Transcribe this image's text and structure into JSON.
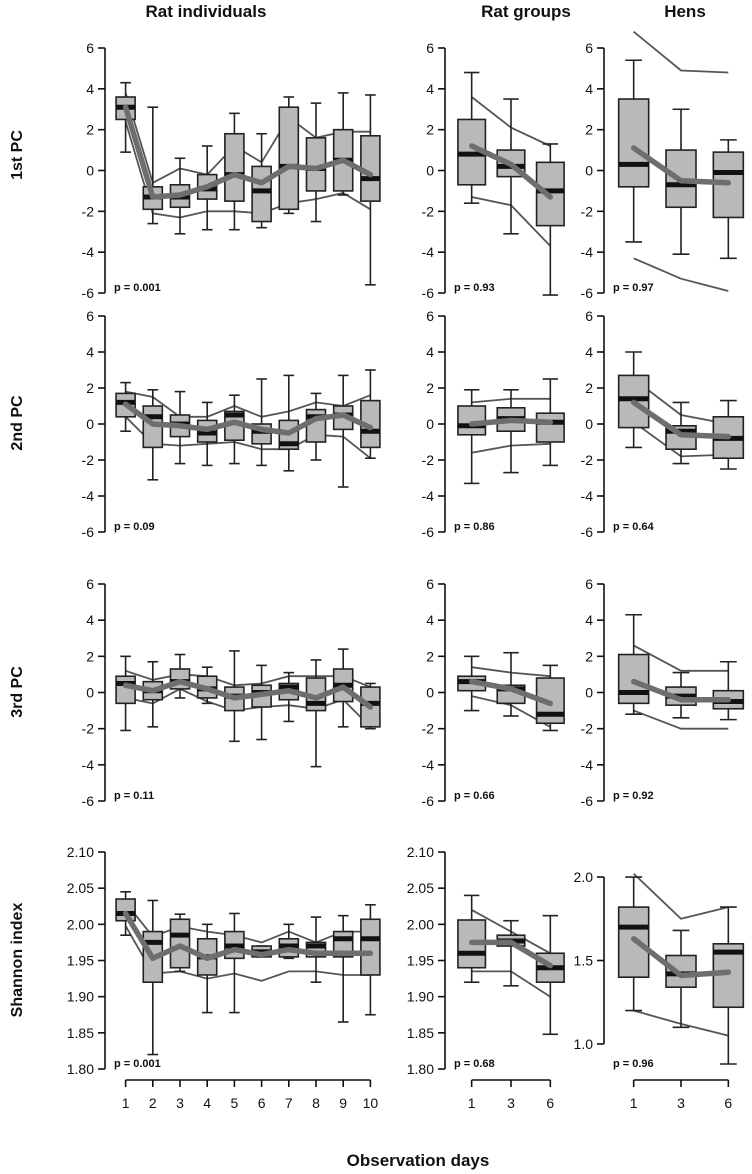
{
  "figure": {
    "column_titles": [
      "Rat individuals",
      "Rat groups",
      "Hens"
    ],
    "row_titles": [
      "1st PC",
      "2nd PC",
      "3rd PC",
      "Shannon index"
    ],
    "xlabel": "Observation days"
  },
  "chart_data": [
    {
      "type": "box",
      "panel": "1st PC / Rat individuals",
      "row": 0,
      "col": 0,
      "p_label": "p = 0.001",
      "ylim": [
        -6,
        6
      ],
      "yticks": [
        "-6",
        "-4",
        "-2",
        "0",
        "2",
        "4",
        "6"
      ],
      "ytick_values": [
        -6,
        -4,
        -2,
        0,
        2,
        4,
        6
      ],
      "categories": [
        "1",
        "2",
        "3",
        "4",
        "5",
        "6",
        "7",
        "8",
        "9",
        "10"
      ],
      "boxes": [
        {
          "wlo": 0.9,
          "q1": 2.5,
          "med": 3.1,
          "q3": 3.6,
          "whi": 4.3
        },
        {
          "wlo": -2.6,
          "q1": -1.9,
          "med": -1.3,
          "q3": -0.8,
          "whi": 3.1
        },
        {
          "wlo": -3.1,
          "q1": -1.8,
          "med": -1.3,
          "q3": -0.7,
          "whi": 0.6
        },
        {
          "wlo": -2.9,
          "q1": -1.4,
          "med": -0.9,
          "q3": -0.2,
          "whi": 1.2
        },
        {
          "wlo": -2.9,
          "q1": -1.5,
          "med": -0.2,
          "q3": 1.8,
          "whi": 2.8
        },
        {
          "wlo": -2.8,
          "q1": -2.5,
          "med": -1.0,
          "q3": 0.2,
          "whi": 1.8
        },
        {
          "wlo": -2.1,
          "q1": -1.9,
          "med": 0.2,
          "q3": 3.1,
          "whi": 3.6
        },
        {
          "wlo": -2.5,
          "q1": -1.0,
          "med": 0.1,
          "q3": 1.6,
          "whi": 3.3
        },
        {
          "wlo": -1.2,
          "q1": -1.0,
          "med": 0.5,
          "q3": 2.0,
          "whi": 3.8
        },
        {
          "wlo": -5.6,
          "q1": -1.5,
          "med": -0.4,
          "q3": 1.7,
          "whi": 3.7
        }
      ],
      "mean": [
        3.1,
        -1.3,
        -1.2,
        -0.8,
        -0.2,
        -0.6,
        0.2,
        0.1,
        0.5,
        -0.2
      ],
      "upper": [
        3.8,
        -0.6,
        0.1,
        -0.2,
        1.2,
        0.4,
        2.6,
        1.6,
        1.9,
        1.9
      ],
      "lower": [
        2.4,
        -2.1,
        -2.3,
        -2.0,
        -2.0,
        -2.1,
        -1.6,
        -1.4,
        -1.1,
        -1.9
      ]
    },
    {
      "type": "box",
      "panel": "1st PC / Rat groups",
      "row": 0,
      "col": 1,
      "p_label": "p = 0.93",
      "ylim": [
        -6,
        6
      ],
      "yticks": [
        "-6",
        "-4",
        "-2",
        "0",
        "2",
        "4",
        "6"
      ],
      "ytick_values": [
        -6,
        -4,
        -2,
        0,
        2,
        4,
        6
      ],
      "categories": [
        "1",
        "3",
        "6"
      ],
      "boxes": [
        {
          "wlo": -1.6,
          "q1": -0.7,
          "med": 0.8,
          "q3": 2.5,
          "whi": 4.8
        },
        {
          "wlo": -3.1,
          "q1": -0.3,
          "med": 0.2,
          "q3": 1.0,
          "whi": 3.5
        },
        {
          "wlo": -6.1,
          "q1": -2.7,
          "med": -1.0,
          "q3": 0.4,
          "whi": 1.3
        }
      ],
      "mean": [
        1.2,
        0.3,
        -1.3
      ],
      "upper": [
        3.6,
        2.1,
        1.2
      ],
      "lower": [
        -1.3,
        -1.7,
        -3.7
      ]
    },
    {
      "type": "box",
      "panel": "1st PC / Hens",
      "row": 0,
      "col": 2,
      "p_label": "p = 0.97",
      "ylim": [
        -6,
        6
      ],
      "yticks": [
        "-6",
        "-4",
        "-2",
        "0",
        "2",
        "4",
        "6"
      ],
      "ytick_values": [
        -6,
        -4,
        -2,
        0,
        2,
        4,
        6
      ],
      "categories": [
        "1",
        "3",
        "6"
      ],
      "boxes": [
        {
          "wlo": -3.5,
          "q1": -0.8,
          "med": 0.3,
          "q3": 3.5,
          "whi": 5.4
        },
        {
          "wlo": -4.1,
          "q1": -1.8,
          "med": -0.7,
          "q3": 1.0,
          "whi": 3.0
        },
        {
          "wlo": -4.3,
          "q1": -2.3,
          "med": -0.1,
          "q3": 0.9,
          "whi": 1.5
        }
      ],
      "mean": [
        1.1,
        -0.5,
        -0.6
      ],
      "upper": [
        6.8,
        4.9,
        4.8
      ],
      "lower": [
        -4.3,
        -5.3,
        -5.9
      ]
    },
    {
      "type": "box",
      "panel": "2nd PC / Rat individuals",
      "row": 1,
      "col": 0,
      "p_label": "p = 0.09",
      "ylim": [
        -6,
        6
      ],
      "yticks": [
        "-6",
        "-4",
        "-2",
        "0",
        "2",
        "4",
        "6"
      ],
      "ytick_values": [
        -6,
        -4,
        -2,
        0,
        2,
        4,
        6
      ],
      "categories": [
        "1",
        "2",
        "3",
        "4",
        "5",
        "6",
        "7",
        "8",
        "9",
        "10"
      ],
      "boxes": [
        {
          "wlo": -0.4,
          "q1": 0.4,
          "med": 1.2,
          "q3": 1.7,
          "whi": 2.3
        },
        {
          "wlo": -3.1,
          "q1": -1.3,
          "med": 0.4,
          "q3": 1.0,
          "whi": 1.9
        },
        {
          "wlo": -2.2,
          "q1": -0.7,
          "med": 0.0,
          "q3": 0.5,
          "whi": 1.8
        },
        {
          "wlo": -2.3,
          "q1": -1.0,
          "med": -0.5,
          "q3": 0.2,
          "whi": 1.2
        },
        {
          "wlo": -2.2,
          "q1": -0.9,
          "med": 0.5,
          "q3": 0.7,
          "whi": 1.6
        },
        {
          "wlo": -2.3,
          "q1": -1.1,
          "med": -0.4,
          "q3": 0.0,
          "whi": 2.5
        },
        {
          "wlo": -2.6,
          "q1": -1.4,
          "med": -1.1,
          "q3": 0.2,
          "whi": 2.7
        },
        {
          "wlo": -2.0,
          "q1": -1.0,
          "med": 0.4,
          "q3": 0.8,
          "whi": 1.7
        },
        {
          "wlo": -3.5,
          "q1": -0.3,
          "med": 0.5,
          "q3": 1.0,
          "whi": 2.7
        },
        {
          "wlo": -1.9,
          "q1": -1.3,
          "med": -0.4,
          "q3": 1.3,
          "whi": 3.0
        }
      ],
      "mean": [
        1.1,
        0.0,
        -0.1,
        -0.3,
        0.1,
        -0.3,
        -0.5,
        0.3,
        0.5,
        -0.2
      ],
      "upper": [
        1.8,
        1.5,
        0.4,
        0.4,
        1.0,
        0.4,
        0.7,
        1.2,
        1.0,
        1.6
      ],
      "lower": [
        0.4,
        -1.1,
        -1.2,
        -1.1,
        -1.0,
        -1.4,
        -1.4,
        -0.6,
        -0.7,
        -1.9
      ]
    },
    {
      "type": "box",
      "panel": "2nd PC / Rat groups",
      "row": 1,
      "col": 1,
      "p_label": "p = 0.86",
      "ylim": [
        -6,
        6
      ],
      "yticks": [
        "-6",
        "-4",
        "-2",
        "0",
        "2",
        "4",
        "6"
      ],
      "ytick_values": [
        -6,
        -4,
        -2,
        0,
        2,
        4,
        6
      ],
      "categories": [
        "1",
        "3",
        "6"
      ],
      "boxes": [
        {
          "wlo": -3.3,
          "q1": -0.6,
          "med": -0.1,
          "q3": 1.0,
          "whi": 1.9
        },
        {
          "wlo": -2.7,
          "q1": -0.4,
          "med": 0.3,
          "q3": 0.9,
          "whi": 1.9
        },
        {
          "wlo": -2.3,
          "q1": -1.0,
          "med": 0.1,
          "q3": 0.6,
          "whi": 2.5
        }
      ],
      "mean": [
        0.0,
        0.2,
        0.1
      ],
      "upper": [
        1.2,
        1.4,
        1.4
      ],
      "lower": [
        -1.6,
        -1.2,
        -1.1
      ]
    },
    {
      "type": "box",
      "panel": "2nd PC / Hens",
      "row": 1,
      "col": 2,
      "p_label": "p = 0.64",
      "ylim": [
        -6,
        6
      ],
      "yticks": [
        "-6",
        "-4",
        "-2",
        "0",
        "2",
        "4",
        "6"
      ],
      "ytick_values": [
        -6,
        -4,
        -2,
        0,
        2,
        4,
        6
      ],
      "categories": [
        "1",
        "3",
        "6"
      ],
      "boxes": [
        {
          "wlo": -1.3,
          "q1": -0.2,
          "med": 1.4,
          "q3": 2.7,
          "whi": 4.0
        },
        {
          "wlo": -2.2,
          "q1": -1.4,
          "med": -0.4,
          "q3": -0.1,
          "whi": 1.2
        },
        {
          "wlo": -2.5,
          "q1": -1.9,
          "med": -0.8,
          "q3": 0.4,
          "whi": 1.3
        }
      ],
      "mean": [
        1.2,
        -0.6,
        -0.7
      ],
      "upper": [
        2.5,
        0.5,
        0.0
      ],
      "lower": [
        0.1,
        -1.8,
        -1.7
      ]
    },
    {
      "type": "box",
      "panel": "3rd PC / Rat individuals",
      "row": 2,
      "col": 0,
      "p_label": "p = 0.11",
      "ylim": [
        -6,
        6
      ],
      "yticks": [
        "-6",
        "-4",
        "-2",
        "0",
        "2",
        "4",
        "6"
      ],
      "ytick_values": [
        -6,
        -4,
        -2,
        0,
        2,
        4,
        6
      ],
      "categories": [
        "1",
        "2",
        "3",
        "4",
        "5",
        "6",
        "7",
        "8",
        "9",
        "10"
      ],
      "boxes": [
        {
          "wlo": -2.1,
          "q1": -0.6,
          "med": 0.5,
          "q3": 0.9,
          "whi": 2.0
        },
        {
          "wlo": -1.9,
          "q1": -0.4,
          "med": 0.1,
          "q3": 0.6,
          "whi": 1.7
        },
        {
          "wlo": -0.3,
          "q1": 0.2,
          "med": 0.6,
          "q3": 1.3,
          "whi": 2.1
        },
        {
          "wlo": -0.6,
          "q1": -0.3,
          "med": 0.2,
          "q3": 0.9,
          "whi": 1.4
        },
        {
          "wlo": -2.7,
          "q1": -1.0,
          "med": -0.2,
          "q3": 0.3,
          "whi": 2.3
        },
        {
          "wlo": -2.6,
          "q1": -0.8,
          "med": 0.0,
          "q3": 0.4,
          "whi": 1.5
        },
        {
          "wlo": -1.6,
          "q1": -0.4,
          "med": 0.3,
          "q3": 0.5,
          "whi": 1.1
        },
        {
          "wlo": -4.1,
          "q1": -1.0,
          "med": -0.6,
          "q3": 0.8,
          "whi": 1.8
        },
        {
          "wlo": -1.9,
          "q1": -0.5,
          "med": 0.4,
          "q3": 1.3,
          "whi": 2.4
        },
        {
          "wlo": -2.0,
          "q1": -1.9,
          "med": -0.6,
          "q3": 0.3,
          "whi": 0.5
        }
      ],
      "mean": [
        0.4,
        0.1,
        0.6,
        0.2,
        -0.3,
        -0.1,
        0.1,
        -0.3,
        0.3,
        -0.8
      ],
      "upper": [
        1.2,
        0.7,
        1.0,
        0.9,
        0.4,
        0.5,
        0.9,
        0.9,
        0.9,
        0.3
      ],
      "lower": [
        -0.3,
        -0.6,
        0.2,
        -0.5,
        -1.0,
        -0.8,
        -0.7,
        -0.9,
        -0.4,
        -1.9
      ]
    },
    {
      "type": "box",
      "panel": "3rd PC / Rat groups",
      "row": 2,
      "col": 1,
      "p_label": "p = 0.66",
      "ylim": [
        -6,
        6
      ],
      "yticks": [
        "-6",
        "-4",
        "-2",
        "0",
        "2",
        "4",
        "6"
      ],
      "ytick_values": [
        -6,
        -4,
        -2,
        0,
        2,
        4,
        6
      ],
      "categories": [
        "1",
        "3",
        "6"
      ],
      "boxes": [
        {
          "wlo": -1.0,
          "q1": 0.1,
          "med": 0.6,
          "q3": 0.9,
          "whi": 2.0
        },
        {
          "wlo": -1.3,
          "q1": -0.6,
          "med": 0.2,
          "q3": 0.4,
          "whi": 2.2
        },
        {
          "wlo": -2.1,
          "q1": -1.7,
          "med": -1.2,
          "q3": 0.8,
          "whi": 1.5
        }
      ],
      "mean": [
        0.6,
        0.2,
        -0.6
      ],
      "upper": [
        1.4,
        1.1,
        0.9
      ],
      "lower": [
        -0.2,
        -0.7,
        -1.9
      ]
    },
    {
      "type": "box",
      "panel": "3rd PC / Hens",
      "row": 2,
      "col": 2,
      "p_label": "p = 0.92",
      "ylim": [
        -6,
        6
      ],
      "yticks": [
        "-6",
        "-4",
        "-2",
        "0",
        "2",
        "4",
        "6"
      ],
      "ytick_values": [
        -6,
        -4,
        -2,
        0,
        2,
        4,
        6
      ],
      "categories": [
        "1",
        "3",
        "6"
      ],
      "boxes": [
        {
          "wlo": -1.2,
          "q1": -0.6,
          "med": 0.0,
          "q3": 2.1,
          "whi": 4.3
        },
        {
          "wlo": -1.4,
          "q1": -0.7,
          "med": -0.2,
          "q3": 0.3,
          "whi": 1.1
        },
        {
          "wlo": -1.5,
          "q1": -0.9,
          "med": -0.5,
          "q3": 0.1,
          "whi": 1.7
        }
      ],
      "mean": [
        0.6,
        -0.4,
        -0.4
      ],
      "upper": [
        2.6,
        1.2,
        1.2
      ],
      "lower": [
        -1.0,
        -2.0,
        -2.0
      ]
    },
    {
      "type": "box",
      "panel": "Shannon index / Rat individuals",
      "row": 3,
      "col": 0,
      "p_label": "p = 0.001",
      "ylim": [
        1.8,
        2.1
      ],
      "yticks": [
        "1.80",
        "1.85",
        "1.90",
        "1.95",
        "2.00",
        "2.05",
        "2.10"
      ],
      "ytick_values": [
        1.8,
        1.85,
        1.9,
        1.95,
        2.0,
        2.05,
        2.1
      ],
      "categories": [
        "1",
        "2",
        "3",
        "4",
        "5",
        "6",
        "7",
        "8",
        "9",
        "10"
      ],
      "boxes": [
        {
          "wlo": 1.985,
          "q1": 2.005,
          "med": 2.015,
          "q3": 2.035,
          "whi": 2.045
        },
        {
          "wlo": 1.82,
          "q1": 1.92,
          "med": 1.975,
          "q3": 1.99,
          "whi": 2.033
        },
        {
          "wlo": 1.935,
          "q1": 1.94,
          "med": 1.985,
          "q3": 2.007,
          "whi": 2.014
        },
        {
          "wlo": 1.878,
          "q1": 1.93,
          "med": 1.955,
          "q3": 1.98,
          "whi": 2.0
        },
        {
          "wlo": 1.878,
          "q1": 1.953,
          "med": 1.97,
          "q3": 1.99,
          "whi": 2.015
        },
        {
          "wlo": 1.955,
          "q1": 1.955,
          "med": 1.962,
          "q3": 1.97,
          "whi": 1.97
        },
        {
          "wlo": 1.953,
          "q1": 1.955,
          "med": 1.97,
          "q3": 1.98,
          "whi": 2.0
        },
        {
          "wlo": 1.92,
          "q1": 1.955,
          "med": 1.97,
          "q3": 1.975,
          "whi": 2.01
        },
        {
          "wlo": 1.865,
          "q1": 1.955,
          "med": 1.98,
          "q3": 1.99,
          "whi": 2.012
        },
        {
          "wlo": 1.875,
          "q1": 1.93,
          "med": 1.98,
          "q3": 2.007,
          "whi": 2.027
        }
      ],
      "mean": [
        2.015,
        1.953,
        1.97,
        1.953,
        1.965,
        1.958,
        1.965,
        1.96,
        1.96,
        1.96
      ],
      "upper": [
        2.03,
        1.983,
        1.997,
        1.99,
        1.985,
        1.975,
        1.99,
        1.975,
        1.99,
        1.99
      ],
      "lower": [
        1.998,
        1.932,
        1.935,
        1.925,
        1.932,
        1.922,
        1.935,
        1.935,
        1.93,
        1.93
      ]
    },
    {
      "type": "box",
      "panel": "Shannon index / Rat groups",
      "row": 3,
      "col": 1,
      "p_label": "p = 0.68",
      "ylim": [
        1.8,
        2.1
      ],
      "yticks": [
        "1.80",
        "1.85",
        "1.90",
        "1.95",
        "2.00",
        "2.05",
        "2.10"
      ],
      "ytick_values": [
        1.8,
        1.85,
        1.9,
        1.95,
        2.0,
        2.05,
        2.1
      ],
      "categories": [
        "1",
        "3",
        "6"
      ],
      "boxes": [
        {
          "wlo": 1.92,
          "q1": 1.94,
          "med": 1.96,
          "q3": 2.006,
          "whi": 2.04
        },
        {
          "wlo": 1.915,
          "q1": 1.97,
          "med": 1.977,
          "q3": 1.985,
          "whi": 2.005
        },
        {
          "wlo": 1.848,
          "q1": 1.92,
          "med": 1.94,
          "q3": 1.96,
          "whi": 2.012
        }
      ],
      "mean": [
        1.975,
        1.975,
        1.943
      ],
      "upper": [
        2.02,
        1.99,
        1.96
      ],
      "lower": [
        1.935,
        1.935,
        1.9
      ]
    },
    {
      "type": "box",
      "panel": "Shannon index / Hens",
      "row": 3,
      "col": 2,
      "p_label": "p = 0.96",
      "ylim": [
        0.85,
        2.15
      ],
      "yticks": [
        "1.0",
        "1.5",
        "2.0"
      ],
      "ytick_values": [
        1.0,
        1.5,
        2.0
      ],
      "categories": [
        "1",
        "3",
        "6"
      ],
      "boxes": [
        {
          "wlo": 1.2,
          "q1": 1.4,
          "med": 1.7,
          "q3": 1.82,
          "whi": 2.0
        },
        {
          "wlo": 1.1,
          "q1": 1.34,
          "med": 1.42,
          "q3": 1.53,
          "whi": 1.68
        },
        {
          "wlo": 0.88,
          "q1": 1.22,
          "med": 1.55,
          "q3": 1.6,
          "whi": 1.82
        }
      ],
      "mean": [
        1.63,
        1.41,
        1.43
      ],
      "upper": [
        2.02,
        1.75,
        1.82
      ],
      "lower": [
        1.2,
        1.12,
        1.05
      ]
    }
  ]
}
